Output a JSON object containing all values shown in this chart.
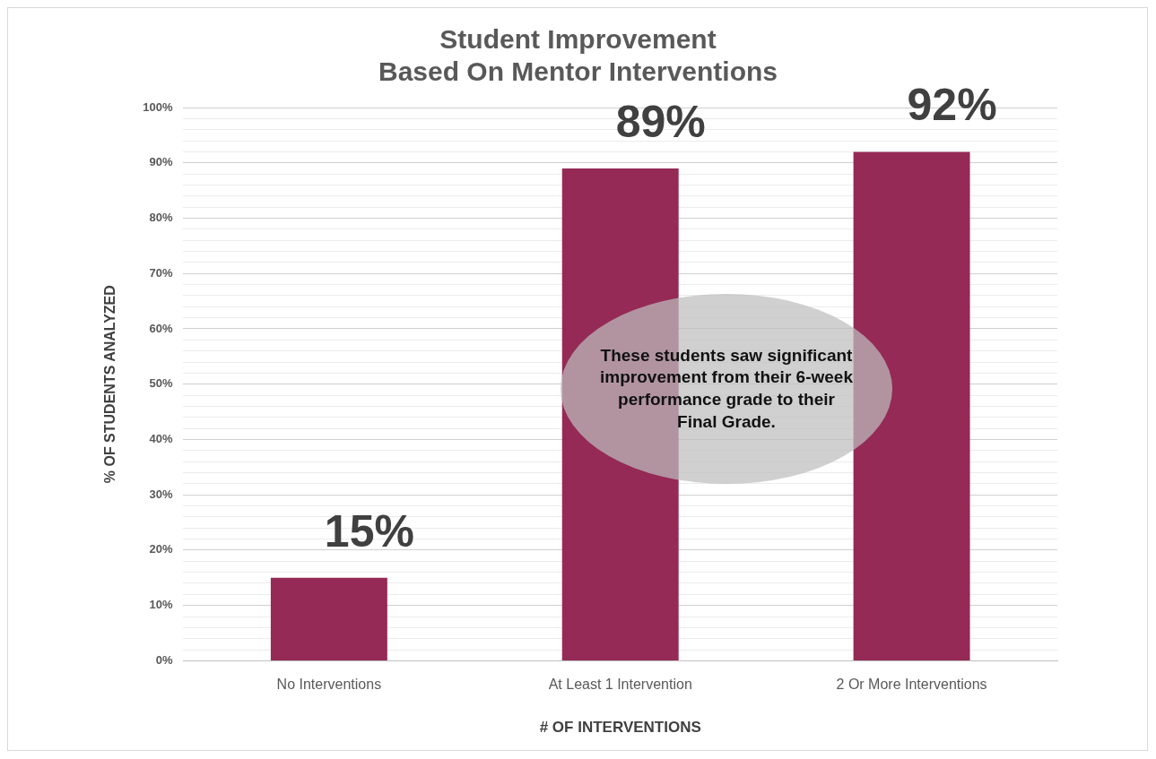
{
  "chart_data": {
    "type": "bar",
    "title": "Student Improvement\nBased On Mentor Interventions",
    "xlabel": "# OF INTERVENTIONS",
    "ylabel": "% OF STUDENTS ANALYZED",
    "categories": [
      "No Interventions",
      "At Least 1 Intervention",
      "2 Or More Interventions"
    ],
    "values": [
      15,
      89,
      92
    ],
    "color": "#952a56",
    "data_labels": true,
    "value_labels": [
      "15%",
      "89%",
      "92%"
    ],
    "ylim": [
      0,
      100
    ],
    "yticks": [
      {
        "value": 0,
        "label": "0%"
      },
      {
        "value": 2,
        "label": null
      },
      {
        "value": 4,
        "label": null
      },
      {
        "value": 6,
        "label": null
      },
      {
        "value": 8,
        "label": null
      },
      {
        "value": 10,
        "label": "10%"
      },
      {
        "value": 12,
        "label": null
      },
      {
        "value": 14,
        "label": null
      },
      {
        "value": 16,
        "label": null
      },
      {
        "value": 18,
        "label": null
      },
      {
        "value": 20,
        "label": "20%"
      },
      {
        "value": 22,
        "label": null
      },
      {
        "value": 24,
        "label": null
      },
      {
        "value": 26,
        "label": null
      },
      {
        "value": 28,
        "label": null
      },
      {
        "value": 30,
        "label": "30%"
      },
      {
        "value": 32,
        "label": null
      },
      {
        "value": 34,
        "label": null
      },
      {
        "value": 36,
        "label": null
      },
      {
        "value": 38,
        "label": null
      },
      {
        "value": 40,
        "label": "40%"
      },
      {
        "value": 42,
        "label": null
      },
      {
        "value": 44,
        "label": null
      },
      {
        "value": 46,
        "label": null
      },
      {
        "value": 48,
        "label": null
      },
      {
        "value": 50,
        "label": "50%"
      },
      {
        "value": 52,
        "label": null
      },
      {
        "value": 54,
        "label": null
      },
      {
        "value": 56,
        "label": null
      },
      {
        "value": 58,
        "label": null
      },
      {
        "value": 60,
        "label": "60%"
      },
      {
        "value": 62,
        "label": null
      },
      {
        "value": 64,
        "label": null
      },
      {
        "value": 66,
        "label": null
      },
      {
        "value": 68,
        "label": null
      },
      {
        "value": 70,
        "label": "70%"
      },
      {
        "value": 72,
        "label": null
      },
      {
        "value": 74,
        "label": null
      },
      {
        "value": 76,
        "label": null
      },
      {
        "value": 78,
        "label": null
      },
      {
        "value": 80,
        "label": "80%"
      },
      {
        "value": 82,
        "label": null
      },
      {
        "value": 84,
        "label": null
      },
      {
        "value": 86,
        "label": null
      },
      {
        "value": 88,
        "label": null
      },
      {
        "value": 90,
        "label": "90%"
      },
      {
        "value": 92,
        "label": null
      },
      {
        "value": 94,
        "label": null
      },
      {
        "value": 96,
        "label": null
      },
      {
        "value": 98,
        "label": null
      },
      {
        "value": 100,
        "label": "100%"
      }
    ],
    "grid": "y",
    "legend": false,
    "annotations": [
      "These students saw significant improvement from their 6-week performance grade to their Final Grade."
    ]
  }
}
